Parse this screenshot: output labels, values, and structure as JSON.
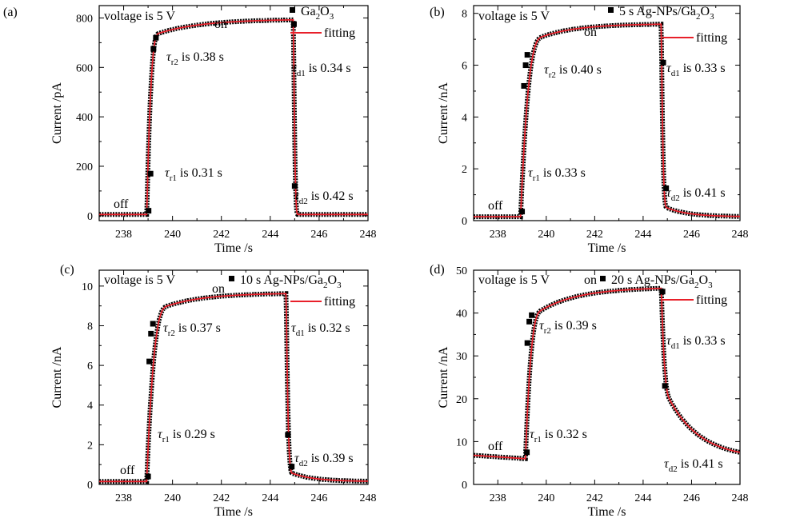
{
  "figure": {
    "xlabel": "Time /s",
    "legend_fit_label": "fitting",
    "colors": {
      "data_marker": "#000000",
      "fit_line": "#e8202a",
      "axis": "#000000"
    }
  },
  "chart_data": [
    {
      "type": "line",
      "panel_letter": "(a)",
      "ylabel": "Current /pA",
      "xlabel": "Time /s",
      "xlim": [
        237,
        248
      ],
      "ylim": [
        -20,
        850
      ],
      "xticks": [
        238,
        240,
        242,
        244,
        246,
        248
      ],
      "yticks": [
        0,
        200,
        400,
        600,
        800
      ],
      "voltage_label": "voltage is 5 V",
      "on_label": "on",
      "off_label": "off",
      "series": [
        {
          "name": "Ga2O3",
          "name_main": "Ga",
          "name_sub1": "2",
          "name_mid": "O",
          "name_sub2": "3"
        },
        {
          "name": "fitting"
        }
      ],
      "rise": {
        "t_on": 238.95,
        "dur": 0.5,
        "i_off": 5,
        "i_start": 20,
        "i_plateau": 795,
        "slow": 75,
        "slow_tau": 1.8,
        "fast_shape": 2
      },
      "decay": {
        "t_off": 244.95,
        "dur": 0.18,
        "i_end": 5,
        "tail": 0,
        "tail_tau": 1.0
      },
      "markers": [
        {
          "x": 239.02,
          "y": 20
        },
        {
          "x": 239.1,
          "y": 170
        },
        {
          "x": 239.22,
          "y": 675
        },
        {
          "x": 239.32,
          "y": 720
        },
        {
          "x": 244.97,
          "y": 775
        },
        {
          "x": 245.0,
          "y": 120
        }
      ],
      "annotations": {
        "tau_r1": {
          "sub": "r1",
          "text": "is 0.31 s"
        },
        "tau_r2": {
          "sub": "r2",
          "text": "is 0.38 s"
        },
        "tau_d1": {
          "sub": "d1",
          "text": "is 0.34 s"
        },
        "tau_d2": {
          "sub": "d2",
          "text": "is 0.42 s"
        }
      }
    },
    {
      "type": "line",
      "panel_letter": "(b)",
      "ylabel": "Current /nA",
      "xlabel": "Time /s",
      "xlim": [
        237,
        248
      ],
      "ylim": [
        0,
        8.3
      ],
      "xticks": [
        238,
        240,
        242,
        244,
        246,
        248
      ],
      "yticks": [
        0,
        2,
        4,
        6,
        8
      ],
      "voltage_label": "voltage is 5 V",
      "on_label": "on",
      "off_label": "off",
      "series": [
        {
          "name": "5 s Ag-NPs/Ga2O3",
          "name_main": "5 s Ag-NPs/Ga",
          "name_sub1": "2",
          "name_mid": "O",
          "name_sub2": "3"
        },
        {
          "name": "fitting"
        }
      ],
      "rise": {
        "t_on": 238.95,
        "dur": 0.9,
        "i_off": 0.15,
        "i_start": 0.35,
        "i_plateau": 7.6,
        "slow": 0.9,
        "slow_tau": 1.5,
        "fast_shape": 2
      },
      "decay": {
        "t_off": 244.75,
        "dur": 0.22,
        "i_end": 0.15,
        "tail": 0.45,
        "tail_tau": 0.9
      },
      "markers": [
        {
          "x": 239.0,
          "y": 0.35
        },
        {
          "x": 239.08,
          "y": 5.2
        },
        {
          "x": 239.15,
          "y": 6.0
        },
        {
          "x": 239.22,
          "y": 6.4
        },
        {
          "x": 244.83,
          "y": 6.1
        },
        {
          "x": 244.95,
          "y": 1.25
        }
      ],
      "annotations": {
        "tau_r1": {
          "sub": "r1",
          "text": "is 0.33 s"
        },
        "tau_r2": {
          "sub": "r2",
          "text": "is 0.40 s"
        },
        "tau_d1": {
          "sub": "d1",
          "text": "is 0.33 s"
        },
        "tau_d2": {
          "sub": "d2",
          "text": "is 0.41 s"
        }
      }
    },
    {
      "type": "line",
      "panel_letter": "(c)",
      "ylabel": "Current /nA",
      "xlabel": "Time /s",
      "xlim": [
        237,
        248
      ],
      "ylim": [
        0,
        10.8
      ],
      "xticks": [
        238,
        240,
        242,
        244,
        246,
        248
      ],
      "yticks": [
        0,
        2,
        4,
        6,
        8,
        10
      ],
      "voltage_label": "voltage is 5 V",
      "on_label": "on",
      "off_label": "off",
      "series": [
        {
          "name": "10 s Ag-NPs/Ga2O3",
          "name_main": "10 s Ag-NPs/Ga",
          "name_sub1": "2",
          "name_mid": "O",
          "name_sub2": "3"
        },
        {
          "name": "fitting"
        }
      ],
      "rise": {
        "t_on": 238.95,
        "dur": 0.85,
        "i_off": 0.15,
        "i_start": 0.4,
        "i_plateau": 9.65,
        "slow": 1.1,
        "slow_tau": 1.6,
        "fast_shape": 2
      },
      "decay": {
        "t_off": 244.65,
        "dur": 0.25,
        "i_end": 0.15,
        "tail": 0.55,
        "tail_tau": 0.9
      },
      "markers": [
        {
          "x": 239.0,
          "y": 0.4
        },
        {
          "x": 239.05,
          "y": 6.2
        },
        {
          "x": 239.12,
          "y": 7.6
        },
        {
          "x": 239.2,
          "y": 8.1
        },
        {
          "x": 244.72,
          "y": 2.5
        },
        {
          "x": 244.88,
          "y": 0.9
        }
      ],
      "annotations": {
        "tau_r1": {
          "sub": "r1",
          "text": "is 0.29 s"
        },
        "tau_r2": {
          "sub": "r2",
          "text": "is 0.37 s"
        },
        "tau_d1": {
          "sub": "d1",
          "text": "is 0.32 s"
        },
        "tau_d2": {
          "sub": "d2",
          "text": "is 0.39 s"
        }
      }
    },
    {
      "type": "line",
      "panel_letter": "(d)",
      "ylabel": "Current /nA",
      "xlabel": "Time /s",
      "xlim": [
        237,
        248
      ],
      "ylim": [
        0,
        50
      ],
      "xticks": [
        238,
        240,
        242,
        244,
        246,
        248
      ],
      "yticks": [
        0,
        10,
        20,
        30,
        40,
        50
      ],
      "voltage_label": "voltage is 5 V",
      "on_label": "on",
      "off_label": "off",
      "series": [
        {
          "name": "20 s Ag-NPs/Ga2O3",
          "name_main": "20 s Ag-NPs/Ga",
          "name_sub1": "2",
          "name_mid": "O",
          "name_sub2": "3"
        },
        {
          "name": "fitting"
        }
      ],
      "rise": {
        "t_on": 239.15,
        "dur": 0.65,
        "i_off_start": 6.8,
        "i_off": 6.0,
        "i_start": 7.5,
        "i_plateau": 46,
        "slow": 8,
        "slow_tau": 1.6,
        "fast_shape": 2
      },
      "decay": {
        "t_off": 244.75,
        "dur": 0.35,
        "i_end": 6.0,
        "tail": 18,
        "tail_tau": 1.3
      },
      "markers": [
        {
          "x": 239.2,
          "y": 7.5
        },
        {
          "x": 239.22,
          "y": 33
        },
        {
          "x": 239.3,
          "y": 38
        },
        {
          "x": 239.4,
          "y": 39.5
        },
        {
          "x": 244.8,
          "y": 45
        },
        {
          "x": 244.9,
          "y": 23
        }
      ],
      "annotations": {
        "tau_r1": {
          "sub": "r1",
          "text": "is 0.32 s"
        },
        "tau_r2": {
          "sub": "r2",
          "text": "is 0.39 s"
        },
        "tau_d1": {
          "sub": "d1",
          "text": "is 0.33 s"
        },
        "tau_d2": {
          "sub": "d2",
          "text": "is 0.41 s"
        }
      }
    }
  ]
}
